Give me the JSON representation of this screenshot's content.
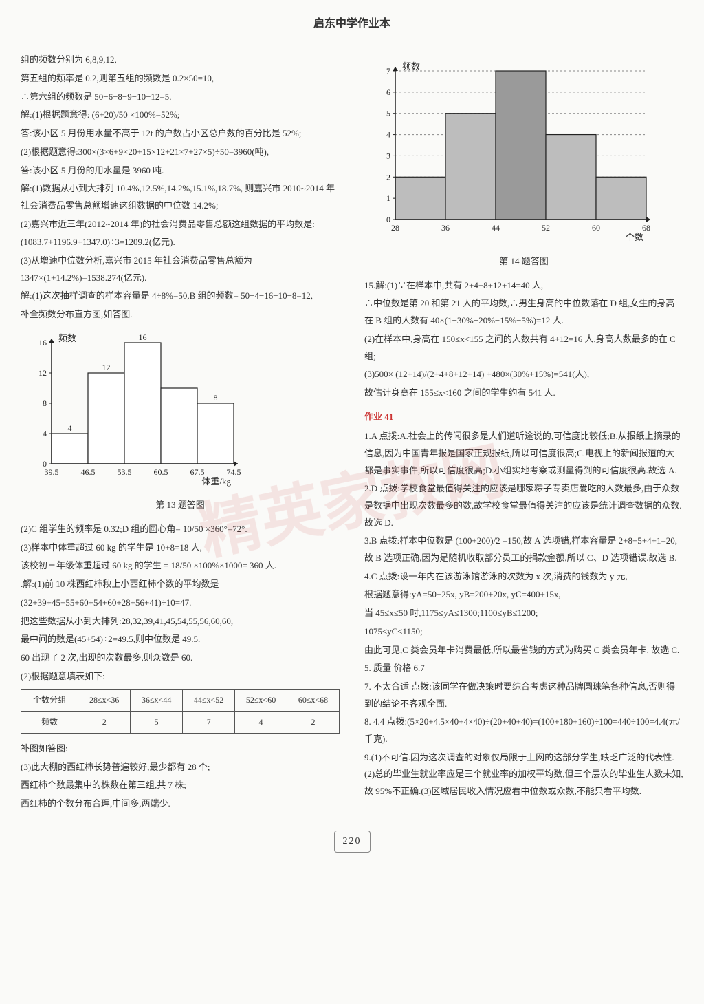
{
  "header": {
    "title": "启东中学作业本"
  },
  "page_number": "220",
  "watermark": "精英家教网",
  "left": {
    "p1": "组的频数分别为 6,8,9,12,",
    "p2": "第五组的频率是 0.2,则第五组的频数是 0.2×50=10,",
    "p3": "∴第六组的频数是 50−6−8−9−10−12=5.",
    "p4": "解:(1)根据题意得: (6+20)/50 ×100%=52%;",
    "p5": "答:该小区 5 月份用水量不高于 12t 的户数占小区总户数的百分比是 52%;",
    "p6": "(2)根据题意得:300×(3×6+9×20+15×12+21×7+27×5)÷50=3960(吨),",
    "p7": "答:该小区 5 月份的用水量是 3960 吨.",
    "p8": "解:(1)数据从小到大排列 10.4%,12.5%,14.2%,15.1%,18.7%, 则嘉兴市 2010~2014 年社会消费品零售总额增速这组数据的中位数 14.2%;",
    "p9": "(2)嘉兴市近三年(2012~2014 年)的社会消费品零售总额这组数据的平均数是:",
    "p10": "(1083.7+1196.9+1347.0)÷3=1209.2(亿元).",
    "p11": "(3)从增速中位数分析,嘉兴市 2015 年社会消费品零售总额为 1347×(1+14.2%)=1538.274(亿元).",
    "p12": "解:(1)这次抽样调查的样本容量是 4÷8%=50,B 组的频数= 50−4−16−10−8=12,",
    "p13": "补全频数分布直方图,如答图.",
    "chart13": {
      "type": "bar",
      "y_label": "频数",
      "x_label": "体重/kg",
      "x_edges": [
        "39.5",
        "46.5",
        "53.5",
        "60.5",
        "67.5",
        "74.5"
      ],
      "values": [
        4,
        12,
        16,
        10,
        8
      ],
      "bar_labels": [
        "4",
        "12",
        "16",
        "",
        "8"
      ],
      "ylim": [
        0,
        16
      ],
      "ytick_step": 4,
      "bar_fill": "#ffffff",
      "bar_stroke": "#222222",
      "axis_color": "#222222",
      "label_fontsize": 12
    },
    "chart13_caption": "第 13 题答图",
    "p14": "(2)C 组学生的频率是 0.32;D 组的圆心角= 10/50 ×360°=72°.",
    "p15": "(3)样本中体重超过 60 kg 的学生是 10+8=18 人,",
    "p16": "该校初三年级体重超过 60 kg 的学生 = 18/50 ×100%×1000= 360 人.",
    "p17": ".解:(1)前 10 株西红柿秧上小西红柿个数的平均数是",
    "p18": "(32+39+45+55+60+54+60+28+56+41)÷10=47.",
    "p19": "把这些数据从小到大排列:28,32,39,41,45,54,55,56,60,60,",
    "p20": "最中间的数是(45+54)÷2=49.5,则中位数是 49.5.",
    "p21": "60 出现了 2 次,出现的次数最多,则众数是 60.",
    "p22": "(2)根据题意填表如下:",
    "table": {
      "header": [
        "个数分组",
        "28≤x<36",
        "36≤x<44",
        "44≤x<52",
        "52≤x<60",
        "60≤x<68"
      ],
      "row_label": "频数",
      "row": [
        "2",
        "5",
        "7",
        "4",
        "2"
      ]
    },
    "p23": "补图如答图:",
    "p24": "(3)此大棚的西红柿长势普遍较好,最少都有 28 个;",
    "p25": "西红柿个数最集中的株数在第三组,共 7 株;",
    "p26": "西红柿的个数分布合理,中间多,两端少."
  },
  "right": {
    "chart14": {
      "type": "bar",
      "y_label": "频数",
      "x_label": "个数",
      "x_edges": [
        "28",
        "36",
        "44",
        "52",
        "60",
        "68"
      ],
      "values": [
        2,
        5,
        7,
        4,
        2
      ],
      "ylim": [
        0,
        7
      ],
      "ytick_step": 1,
      "bar_fill": "#bdbdbd",
      "bar_hatch_middle": true,
      "bar_stroke": "#222222",
      "dashed_grid": true,
      "grid_color": "#888888",
      "axis_color": "#222222",
      "label_fontsize": 12
    },
    "chart14_caption": "第 14 题答图",
    "p1": "15.解:(1)∵在样本中,共有 2+4+8+12+14=40 人,",
    "p2": "∴中位数是第 20 和第 21 人的平均数,∴男生身高的中位数落在 D 组,女生的身高在 B 组的人数有 40×(1−30%−20%−15%−5%)=12 人.",
    "p3": "(2)在样本中,身高在 150≤x<155 之间的人数共有 4+12=16 人,身高人数最多的在 C 组;",
    "p4": "(3)500× (12+14)/(2+4+8+12+14) +480×(30%+15%)=541(人),",
    "p5": "故估计身高在 155≤x<160 之间的学生约有 541 人.",
    "section": "作业 41",
    "q1": "1.A  点拨:A.社会上的传闻很多是人们道听途说的,可信度比较低;B.从报纸上摘录的信息,因为中国青年报是国家正规报纸,所以可信度很高;C.电视上的新闻报道的大都是事实事件,所以可信度很高;D.小组实地考察或测量得到的可信度很高.故选 A.",
    "q2": "2.D  点拨:学校食堂最值得关注的应该是哪家粽子专卖店爱吃的人数最多,由于众数是数据中出现次数最多的数,故学校食堂最值得关注的应该是统计调查数据的众数. 故选 D.",
    "q3": "3.B  点拨:样本中位数是 (100+200)/2 =150,故 A 选项错,样本容量是 2+8+5+4+1=20,故 B 选项正确,因为是随机收取部分员工的捐款金额,所以 C、D 选项错误.故选 B.",
    "q4a": "4.C  点拨:设一年内在该游泳馆游泳的次数为 x 次,消费的钱数为 y 元,",
    "q4b": "根据题意得:yA=50+25x, yB=200+20x, yC=400+15x,",
    "q4c": "当 45≤x≤50 时,1175≤yA≤1300;1100≤yB≤1200;",
    "q4d": "1075≤yC≤1150;",
    "q4e": "由此可见,C 类会员年卡消费最低,所以最省钱的方式为购买 C 类会员年卡. 故选 C.",
    "q5": "5. 质量  价格  6.7",
    "q7": "7. 不太合适  点拨:该同学在做决策时要综合考虑这种品牌圆珠笔各种信息,否则得到的结论不客观全面.",
    "q8": "8. 4.4  点拨:(5×20+4.5×40+4×40)÷(20+40+40)=(100+180+160)÷100=440÷100=4.4(元/千克).",
    "q9": "9.(1)不可信.因为这次调查的对象仅局限于上网的这部分学生,缺乏广泛的代表性.(2)总的毕业生就业率应是三个就业率的加权平均数,但三个层次的毕业生人数未知,故 95%不正确.(3)区域居民收入情况应看中位数或众数,不能只看平均数."
  }
}
